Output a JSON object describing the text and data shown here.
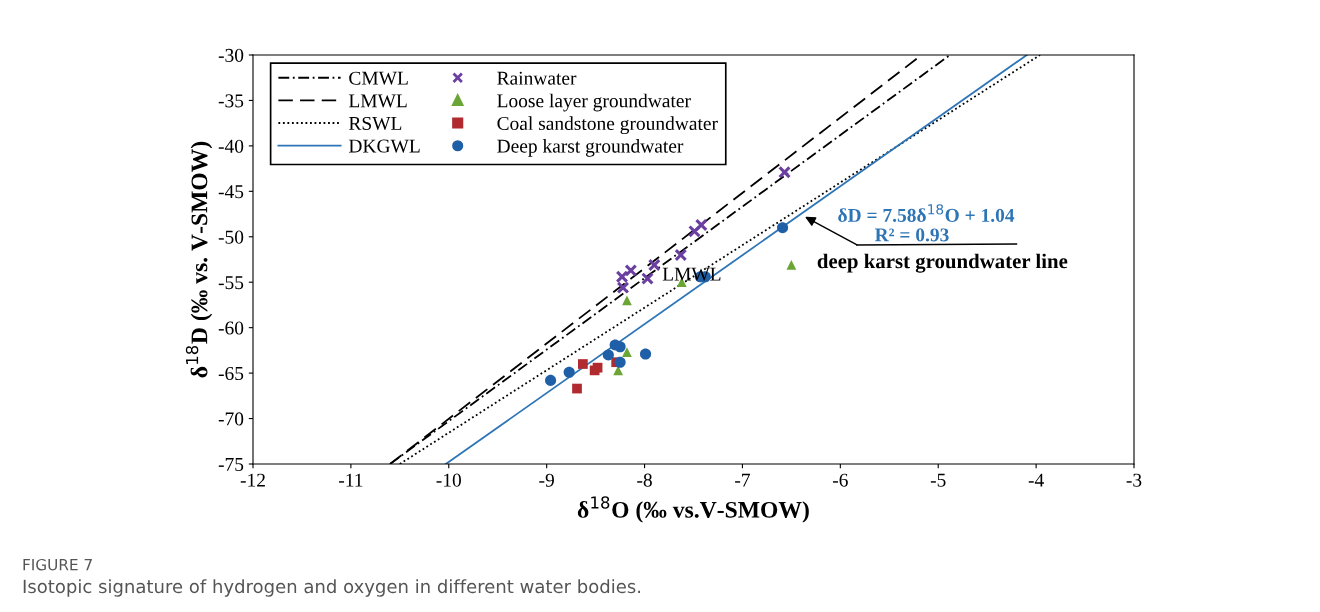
{
  "chart_data": {
    "type": "scatter",
    "xlabel": "δ$^{18}$O (‰ vs.V-SMOW)",
    "ylabel": "δ$^{18}$D (‰ vs. V-SMOW)",
    "xlim": [
      -12,
      -3
    ],
    "ylim": [
      -75,
      -30
    ],
    "xticks": [
      -12,
      -11,
      -10,
      -9,
      -8,
      -7,
      -6,
      -5,
      -4,
      -3
    ],
    "yticks": [
      -75,
      -70,
      -65,
      -60,
      -55,
      -50,
      -45,
      -40,
      -35,
      -30
    ],
    "grid": false,
    "legend": "top left",
    "series": [
      {
        "name": "CMWL",
        "type": "line",
        "line_style": "dashdot",
        "marker": "none",
        "color": "#000000",
        "x": [
          -10.6,
          -4.88
        ],
        "values": [
          -75,
          -30
        ]
      },
      {
        "name": "LMWL",
        "type": "line",
        "line_style": "dashed",
        "marker": "none",
        "color": "#000000",
        "x": [
          -10.6,
          -5.17
        ],
        "values": [
          -75,
          -30
        ]
      },
      {
        "name": "RSWL",
        "type": "line",
        "line_style": "dotted",
        "marker": "none",
        "color": "#000000",
        "x": [
          -10.5,
          -3.96
        ],
        "values": [
          -75,
          -30
        ]
      },
      {
        "name": "DKGWL",
        "type": "line",
        "line_style": "solid",
        "marker": "none",
        "color": "#2e75b6",
        "x": [
          -10.03,
          -4.095
        ],
        "values": [
          -75,
          -30
        ]
      },
      {
        "name": "Rainwater",
        "marker": "cross",
        "color": "#6b3fa0",
        "x": [
          -6.57,
          -7.49,
          -7.42,
          -7.63,
          -7.9,
          -7.97,
          -8.14,
          -8.23,
          -8.22
        ],
        "values": [
          -42.9,
          -49.4,
          -48.7,
          -52.0,
          -53.1,
          -54.6,
          -53.7,
          -54.4,
          -55.6
        ]
      },
      {
        "name": "Loose layer groundwater",
        "marker": "triangle",
        "color": "#6aa535",
        "x": [
          -8.18,
          -7.62,
          -8.18,
          -8.27,
          -6.5
        ],
        "values": [
          -57.0,
          -55.0,
          -62.7,
          -64.7,
          -53.1
        ]
      },
      {
        "name": "Coal sandstone groundwater",
        "marker": "square",
        "color": "#b02a30",
        "x": [
          -8.63,
          -8.51,
          -8.48,
          -8.69,
          -8.29
        ],
        "values": [
          -64.0,
          -64.7,
          -64.4,
          -66.7,
          -63.8
        ]
      },
      {
        "name": "Deep karst groundwater",
        "marker": "circle",
        "color": "#1f5fa8",
        "x": [
          -8.96,
          -8.77,
          -8.37,
          -8.3,
          -8.25,
          -8.25,
          -7.99,
          -7.43,
          -7.38,
          -6.59
        ],
        "values": [
          -65.8,
          -64.9,
          -63.0,
          -61.9,
          -62.1,
          -63.8,
          -62.9,
          -54.4,
          -54.4,
          -49.0
        ]
      }
    ],
    "annotations": [
      "LMWL",
      {
        "text": "δD = 7.58δ$^{18}$O + 1.04",
        "x": -6.36,
        "y": -47.8
      },
      "R² = 0.93",
      "deep karst groundwater line",
      "FIGURE 7",
      "Isotopic signature of hydrogen and oxygen in different water bodies."
    ]
  }
}
